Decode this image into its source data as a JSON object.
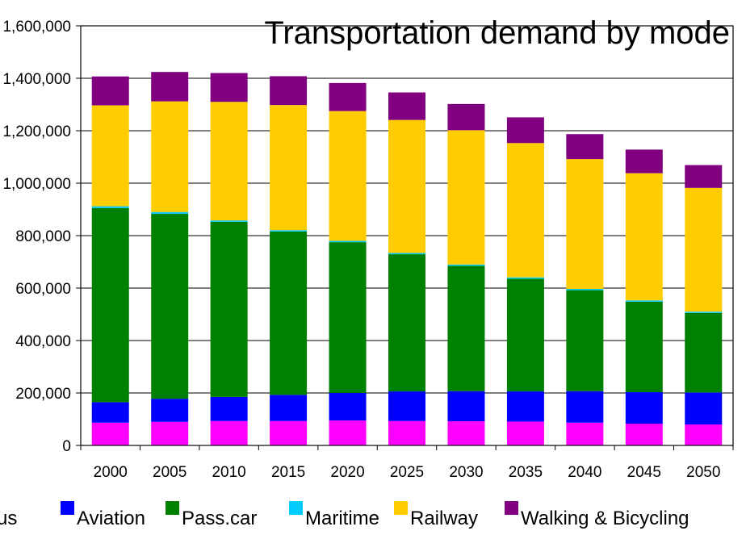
{
  "chart_data": {
    "type": "bar",
    "stacked": true,
    "title": "Transportation demand by mode",
    "xlabel": "",
    "ylabel": "",
    "ylim": [
      0,
      1600000
    ],
    "yticks": [
      0,
      200000,
      400000,
      600000,
      800000,
      1000000,
      1200000,
      1400000,
      1600000
    ],
    "ytick_labels": [
      "0",
      "200,000",
      "400,000",
      "600,000",
      "800,000",
      "1,000,000",
      "1,200,000",
      "1,400,000",
      "1,600,000"
    ],
    "categories": [
      "2000",
      "2005",
      "2010",
      "2015",
      "2020",
      "2025",
      "2030",
      "2035",
      "2040",
      "2045",
      "2050"
    ],
    "grid": "horizontal",
    "legend_position": "bottom",
    "series": [
      {
        "name": "Bus",
        "color": "#FF00FF",
        "values": [
          87000,
          90000,
          93000,
          93000,
          95000,
          93000,
          92000,
          91000,
          87000,
          83000,
          80000
        ]
      },
      {
        "name": "Aviation",
        "color": "#0000FF",
        "values": [
          78000,
          88000,
          92000,
          100000,
          105000,
          113000,
          115000,
          115000,
          120000,
          120000,
          122000
        ]
      },
      {
        "name": "Pass.car",
        "color": "#008000",
        "values": [
          740000,
          705000,
          668000,
          623000,
          575000,
          523000,
          478000,
          430000,
          385000,
          345000,
          303000
        ]
      },
      {
        "name": "Maritime",
        "color": "#00CCFF",
        "values": [
          7000,
          7000,
          5000,
          5000,
          5000,
          5000,
          5000,
          5000,
          5000,
          5000,
          5000
        ]
      },
      {
        "name": "Railway",
        "color": "#FFCC00",
        "values": [
          385000,
          422000,
          452000,
          477000,
          495000,
          507000,
          512000,
          512000,
          495000,
          485000,
          472000
        ]
      },
      {
        "name": "Walking & Bicycling",
        "color": "#800080",
        "values": [
          110000,
          112000,
          110000,
          110000,
          107000,
          105000,
          100000,
          98000,
          95000,
          90000,
          87000
        ]
      }
    ]
  }
}
